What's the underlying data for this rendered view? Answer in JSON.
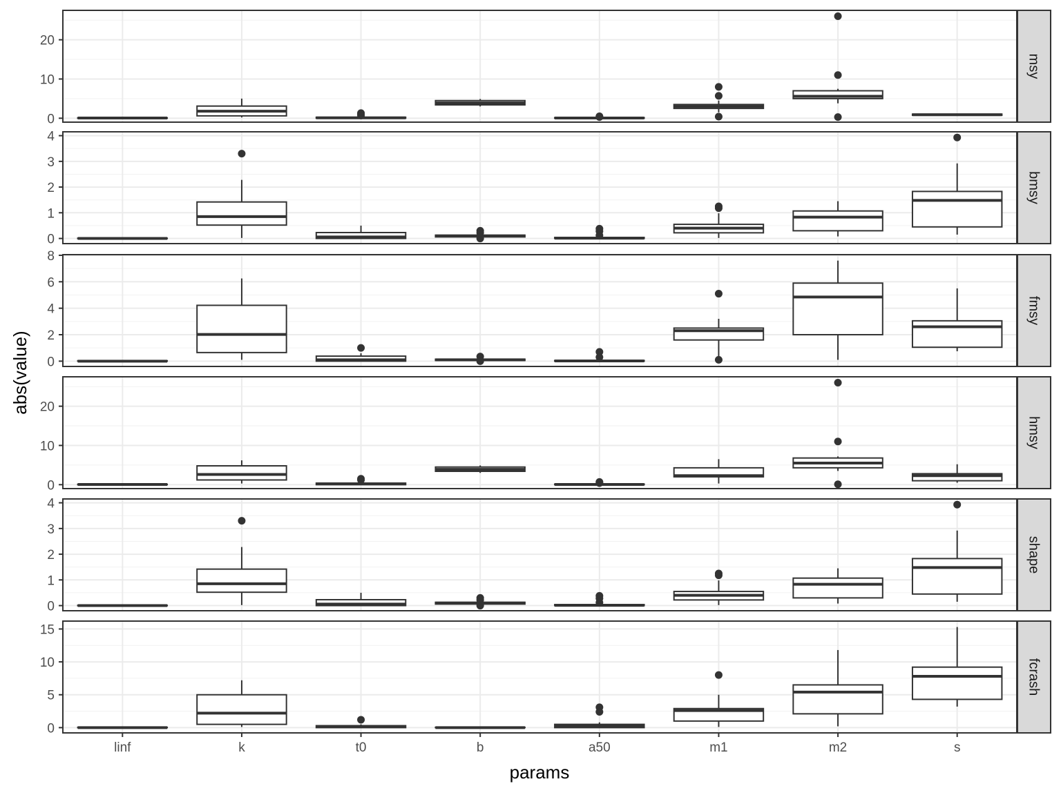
{
  "chart_data": {
    "type": "boxplot",
    "xlabel": "params",
    "ylabel": "abs(value)",
    "categories": [
      "linf",
      "k",
      "t0",
      "b",
      "a50",
      "m1",
      "m2",
      "s"
    ],
    "grid": true,
    "facets": [
      {
        "label": "msy",
        "ylim": [
          -1,
          27.5
        ],
        "yticks": [
          0,
          10,
          20
        ],
        "boxes": [
          {
            "q1": 0.0,
            "median": 0.05,
            "q3": 0.1,
            "lw": 0.0,
            "uw": 0.15,
            "outliers": []
          },
          {
            "q1": 0.6,
            "median": 1.8,
            "q3": 3.1,
            "lw": 0.2,
            "uw": 5.0,
            "outliers": []
          },
          {
            "q1": 0.0,
            "median": 0.1,
            "q3": 0.25,
            "lw": 0.0,
            "uw": 0.5,
            "outliers": [
              1.0,
              1.3,
              0.7
            ]
          },
          {
            "q1": 3.4,
            "median": 3.9,
            "q3": 4.5,
            "lw": 3.0,
            "uw": 4.9,
            "outliers": []
          },
          {
            "q1": 0.0,
            "median": 0.05,
            "q3": 0.15,
            "lw": 0.0,
            "uw": 0.25,
            "outliers": [
              0.5,
              0.3
            ]
          },
          {
            "q1": 2.5,
            "median": 3.0,
            "q3": 3.5,
            "lw": 1.5,
            "uw": 4.5,
            "outliers": [
              8.0,
              5.7,
              0.4
            ]
          },
          {
            "q1": 5.0,
            "median": 5.6,
            "q3": 7.0,
            "lw": 3.8,
            "uw": 7.5,
            "outliers": [
              26.0,
              11.0,
              0.3
            ]
          },
          {
            "q1": 0.75,
            "median": 0.9,
            "q3": 1.05,
            "lw": 0.6,
            "uw": 1.2,
            "outliers": []
          }
        ]
      },
      {
        "label": "bmsy",
        "ylim": [
          -0.2,
          4.15
        ],
        "yticks": [
          0,
          1,
          2,
          3,
          4
        ],
        "boxes": [
          {
            "q1": 0.0,
            "median": 0.0,
            "q3": 0.01,
            "lw": 0.0,
            "uw": 0.02,
            "outliers": []
          },
          {
            "q1": 0.52,
            "median": 0.85,
            "q3": 1.42,
            "lw": 0.02,
            "uw": 2.28,
            "outliers": [
              3.3
            ]
          },
          {
            "q1": 0.0,
            "median": 0.06,
            "q3": 0.23,
            "lw": 0.0,
            "uw": 0.5,
            "outliers": []
          },
          {
            "q1": 0.06,
            "median": 0.1,
            "q3": 0.13,
            "lw": 0.02,
            "uw": 0.18,
            "outliers": [
              0.3,
              0.22,
              0.0
            ]
          },
          {
            "q1": 0.0,
            "median": 0.01,
            "q3": 0.04,
            "lw": 0.0,
            "uw": 0.08,
            "outliers": [
              0.38,
              0.28,
              0.12
            ]
          },
          {
            "q1": 0.22,
            "median": 0.4,
            "q3": 0.55,
            "lw": 0.02,
            "uw": 0.98,
            "outliers": [
              1.25,
              1.18
            ]
          },
          {
            "q1": 0.3,
            "median": 0.83,
            "q3": 1.07,
            "lw": 0.08,
            "uw": 1.45,
            "outliers": []
          },
          {
            "q1": 0.45,
            "median": 1.48,
            "q3": 1.83,
            "lw": 0.15,
            "uw": 2.92,
            "outliers": [
              3.93
            ]
          }
        ]
      },
      {
        "label": "fmsy",
        "ylim": [
          -0.4,
          8.05
        ],
        "yticks": [
          0,
          2,
          4,
          6,
          8
        ],
        "boxes": [
          {
            "q1": 0.0,
            "median": 0.0,
            "q3": 0.03,
            "lw": 0.0,
            "uw": 0.05,
            "outliers": []
          },
          {
            "q1": 0.65,
            "median": 2.02,
            "q3": 4.22,
            "lw": 0.1,
            "uw": 6.25,
            "outliers": []
          },
          {
            "q1": 0.0,
            "median": 0.1,
            "q3": 0.38,
            "lw": 0.0,
            "uw": 0.6,
            "outliers": [
              1.0
            ]
          },
          {
            "q1": 0.05,
            "median": 0.1,
            "q3": 0.15,
            "lw": 0.0,
            "uw": 0.22,
            "outliers": [
              0.35,
              0.0
            ]
          },
          {
            "q1": 0.0,
            "median": 0.02,
            "q3": 0.05,
            "lw": 0.0,
            "uw": 0.1,
            "outliers": [
              0.7,
              0.3
            ]
          },
          {
            "q1": 1.6,
            "median": 2.3,
            "q3": 2.5,
            "lw": 0.25,
            "uw": 3.2,
            "outliers": [
              5.1,
              0.1
            ]
          },
          {
            "q1": 2.0,
            "median": 4.85,
            "q3": 5.9,
            "lw": 0.1,
            "uw": 7.6,
            "outliers": []
          },
          {
            "q1": 1.05,
            "median": 2.6,
            "q3": 3.05,
            "lw": 0.75,
            "uw": 5.5,
            "outliers": []
          }
        ]
      },
      {
        "label": "hmsy",
        "ylim": [
          -1,
          27.5
        ],
        "yticks": [
          0,
          10,
          20
        ],
        "boxes": [
          {
            "q1": 0.0,
            "median": 0.05,
            "q3": 0.1,
            "lw": 0.0,
            "uw": 0.15,
            "outliers": []
          },
          {
            "q1": 1.2,
            "median": 2.6,
            "q3": 4.8,
            "lw": 0.3,
            "uw": 6.2,
            "outliers": []
          },
          {
            "q1": 0.0,
            "median": 0.2,
            "q3": 0.4,
            "lw": 0.0,
            "uw": 0.8,
            "outliers": [
              1.5,
              1.2
            ]
          },
          {
            "q1": 3.4,
            "median": 3.9,
            "q3": 4.5,
            "lw": 3.0,
            "uw": 4.9,
            "outliers": []
          },
          {
            "q1": 0.0,
            "median": 0.05,
            "q3": 0.15,
            "lw": 0.0,
            "uw": 0.3,
            "outliers": [
              0.7,
              0.4
            ]
          },
          {
            "q1": 2.0,
            "median": 2.3,
            "q3": 4.3,
            "lw": 0.3,
            "uw": 6.5,
            "outliers": []
          },
          {
            "q1": 4.3,
            "median": 5.5,
            "q3": 6.8,
            "lw": 3.5,
            "uw": 7.2,
            "outliers": [
              26.0,
              11.0,
              0.1
            ]
          },
          {
            "q1": 1.0,
            "median": 2.3,
            "q3": 2.8,
            "lw": 0.5,
            "uw": 5.2,
            "outliers": []
          }
        ]
      },
      {
        "label": "shape",
        "ylim": [
          -0.2,
          4.15
        ],
        "yticks": [
          0,
          1,
          2,
          3,
          4
        ],
        "boxes": [
          {
            "q1": 0.0,
            "median": 0.0,
            "q3": 0.01,
            "lw": 0.0,
            "uw": 0.02,
            "outliers": []
          },
          {
            "q1": 0.52,
            "median": 0.85,
            "q3": 1.42,
            "lw": 0.02,
            "uw": 2.28,
            "outliers": [
              3.3
            ]
          },
          {
            "q1": 0.0,
            "median": 0.06,
            "q3": 0.23,
            "lw": 0.0,
            "uw": 0.5,
            "outliers": []
          },
          {
            "q1": 0.06,
            "median": 0.1,
            "q3": 0.13,
            "lw": 0.02,
            "uw": 0.18,
            "outliers": [
              0.3,
              0.22,
              0.0
            ]
          },
          {
            "q1": 0.0,
            "median": 0.01,
            "q3": 0.04,
            "lw": 0.0,
            "uw": 0.08,
            "outliers": [
              0.38,
              0.28,
              0.12
            ]
          },
          {
            "q1": 0.22,
            "median": 0.4,
            "q3": 0.55,
            "lw": 0.02,
            "uw": 0.98,
            "outliers": [
              1.25,
              1.18
            ]
          },
          {
            "q1": 0.3,
            "median": 0.83,
            "q3": 1.07,
            "lw": 0.08,
            "uw": 1.45,
            "outliers": []
          },
          {
            "q1": 0.45,
            "median": 1.48,
            "q3": 1.83,
            "lw": 0.15,
            "uw": 2.92,
            "outliers": [
              3.93
            ]
          }
        ]
      },
      {
        "label": "fcrash",
        "ylim": [
          -0.8,
          16.2
        ],
        "yticks": [
          0,
          5,
          10,
          15
        ],
        "boxes": [
          {
            "q1": 0.0,
            "median": 0.0,
            "q3": 0.05,
            "lw": 0.0,
            "uw": 0.1,
            "outliers": []
          },
          {
            "q1": 0.5,
            "median": 2.2,
            "q3": 5.0,
            "lw": 0.1,
            "uw": 7.2,
            "outliers": []
          },
          {
            "q1": 0.0,
            "median": 0.15,
            "q3": 0.3,
            "lw": 0.0,
            "uw": 0.5,
            "outliers": [
              1.2
            ]
          },
          {
            "q1": 0.0,
            "median": 0.0,
            "q3": 0.05,
            "lw": 0.0,
            "uw": 0.1,
            "outliers": []
          },
          {
            "q1": 0.0,
            "median": 0.2,
            "q3": 0.5,
            "lw": 0.0,
            "uw": 0.8,
            "outliers": [
              3.1,
              2.4
            ]
          },
          {
            "q1": 1.0,
            "median": 2.6,
            "q3": 2.9,
            "lw": 0.1,
            "uw": 5.0,
            "outliers": [
              8.0
            ]
          },
          {
            "q1": 2.1,
            "median": 5.4,
            "q3": 6.5,
            "lw": 0.2,
            "uw": 11.8,
            "outliers": []
          },
          {
            "q1": 4.3,
            "median": 7.8,
            "q3": 9.2,
            "lw": 3.2,
            "uw": 15.3,
            "outliers": []
          }
        ]
      }
    ]
  }
}
